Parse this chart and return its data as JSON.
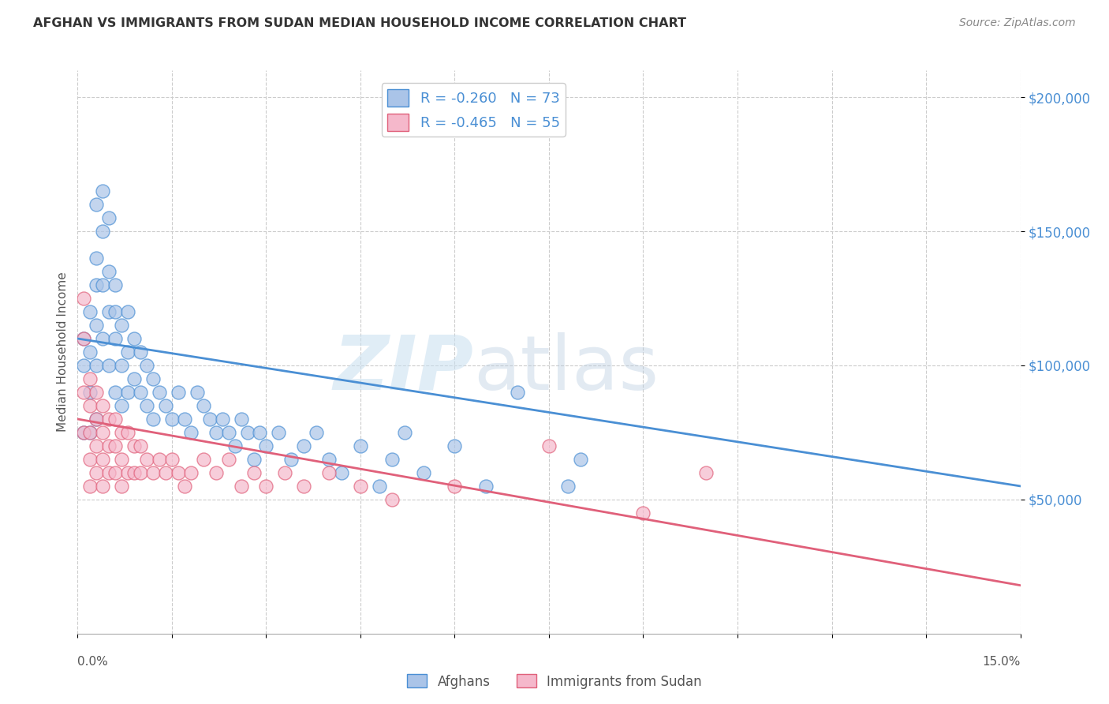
{
  "title": "AFGHAN VS IMMIGRANTS FROM SUDAN MEDIAN HOUSEHOLD INCOME CORRELATION CHART",
  "source": "Source: ZipAtlas.com",
  "ylabel": "Median Household Income",
  "xlim": [
    0.0,
    0.15
  ],
  "ylim": [
    0,
    210000
  ],
  "yticks": [
    50000,
    100000,
    150000,
    200000
  ],
  "ytick_labels": [
    "$50,000",
    "$100,000",
    "$150,000",
    "$200,000"
  ],
  "watermark_zip": "ZIP",
  "watermark_atlas": "atlas",
  "legend_r1": "-0.260",
  "legend_n1": "73",
  "legend_r2": "-0.465",
  "legend_n2": "55",
  "color_blue": "#aac4e8",
  "color_pink": "#f5b8cb",
  "line_color_blue": "#4a8fd4",
  "line_color_pink": "#e0607a",
  "tick_color": "#4a8fd4",
  "legend_label1": "Afghans",
  "legend_label2": "Immigrants from Sudan",
  "background_color": "#ffffff",
  "afghans_x": [
    0.001,
    0.001,
    0.001,
    0.002,
    0.002,
    0.002,
    0.002,
    0.003,
    0.003,
    0.003,
    0.003,
    0.003,
    0.003,
    0.004,
    0.004,
    0.004,
    0.004,
    0.005,
    0.005,
    0.005,
    0.005,
    0.006,
    0.006,
    0.006,
    0.006,
    0.007,
    0.007,
    0.007,
    0.008,
    0.008,
    0.008,
    0.009,
    0.009,
    0.01,
    0.01,
    0.011,
    0.011,
    0.012,
    0.012,
    0.013,
    0.014,
    0.015,
    0.016,
    0.017,
    0.018,
    0.019,
    0.02,
    0.021,
    0.022,
    0.023,
    0.024,
    0.025,
    0.026,
    0.027,
    0.028,
    0.029,
    0.03,
    0.032,
    0.034,
    0.036,
    0.038,
    0.04,
    0.042,
    0.045,
    0.048,
    0.05,
    0.052,
    0.055,
    0.06,
    0.065,
    0.07,
    0.078,
    0.08
  ],
  "afghans_y": [
    100000,
    110000,
    75000,
    120000,
    105000,
    90000,
    75000,
    160000,
    140000,
    130000,
    115000,
    100000,
    80000,
    165000,
    150000,
    130000,
    110000,
    155000,
    135000,
    120000,
    100000,
    130000,
    120000,
    110000,
    90000,
    115000,
    100000,
    85000,
    120000,
    105000,
    90000,
    110000,
    95000,
    105000,
    90000,
    100000,
    85000,
    95000,
    80000,
    90000,
    85000,
    80000,
    90000,
    80000,
    75000,
    90000,
    85000,
    80000,
    75000,
    80000,
    75000,
    70000,
    80000,
    75000,
    65000,
    75000,
    70000,
    75000,
    65000,
    70000,
    75000,
    65000,
    60000,
    70000,
    55000,
    65000,
    75000,
    60000,
    70000,
    55000,
    90000,
    55000,
    65000
  ],
  "sudan_x": [
    0.001,
    0.001,
    0.001,
    0.001,
    0.002,
    0.002,
    0.002,
    0.002,
    0.002,
    0.003,
    0.003,
    0.003,
    0.003,
    0.004,
    0.004,
    0.004,
    0.004,
    0.005,
    0.005,
    0.005,
    0.006,
    0.006,
    0.006,
    0.007,
    0.007,
    0.007,
    0.008,
    0.008,
    0.009,
    0.009,
    0.01,
    0.01,
    0.011,
    0.012,
    0.013,
    0.014,
    0.015,
    0.016,
    0.017,
    0.018,
    0.02,
    0.022,
    0.024,
    0.026,
    0.028,
    0.03,
    0.033,
    0.036,
    0.04,
    0.045,
    0.05,
    0.06,
    0.075,
    0.09,
    0.1
  ],
  "sudan_y": [
    125000,
    110000,
    90000,
    75000,
    95000,
    85000,
    75000,
    65000,
    55000,
    90000,
    80000,
    70000,
    60000,
    85000,
    75000,
    65000,
    55000,
    80000,
    70000,
    60000,
    80000,
    70000,
    60000,
    75000,
    65000,
    55000,
    75000,
    60000,
    70000,
    60000,
    70000,
    60000,
    65000,
    60000,
    65000,
    60000,
    65000,
    60000,
    55000,
    60000,
    65000,
    60000,
    65000,
    55000,
    60000,
    55000,
    60000,
    55000,
    60000,
    55000,
    50000,
    55000,
    70000,
    45000,
    60000
  ]
}
